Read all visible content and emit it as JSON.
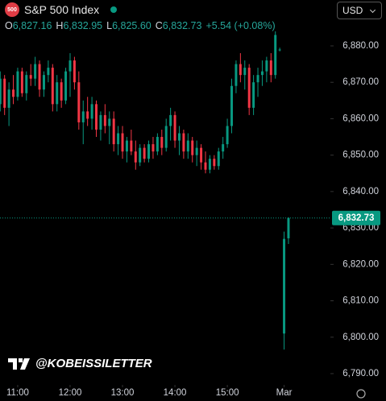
{
  "chart_data": {
    "type": "candlestick",
    "title": "S&P 500 Index",
    "badge": "500",
    "ohlc_legend": [
      {
        "key": "O",
        "value": "6,827.16"
      },
      {
        "key": "H",
        "value": "6,832.95"
      },
      {
        "key": "L",
        "value": "6,825.60"
      },
      {
        "key": "C",
        "value": "6,832.73"
      }
    ],
    "change": "+5.54 (+0.08%)",
    "currency": "USD",
    "watermark": "@KOBEISSILETTER",
    "up_color": "#089981",
    "down_color": "#f23645",
    "last_price": {
      "value": 6832.73,
      "label": "6,832.73"
    },
    "xlim": [
      -0.05,
      75.6
    ],
    "xticks": [
      {
        "value": 4,
        "label": "11:00"
      },
      {
        "value": 16,
        "label": "12:00"
      },
      {
        "value": 28,
        "label": "13:00"
      },
      {
        "value": 40,
        "label": "14:00"
      },
      {
        "value": 52,
        "label": "15:00"
      },
      {
        "value": 65,
        "label": "Mar"
      }
    ],
    "ylim": [
      6786.9,
      6892.6
    ],
    "yticks": [
      {
        "value": 6790,
        "label": "6,790.00"
      },
      {
        "value": 6800,
        "label": "6,800.00"
      },
      {
        "value": 6810,
        "label": "6,810.00"
      },
      {
        "value": 6820,
        "label": "6,820.00"
      },
      {
        "value": 6830,
        "label": "6,830.00"
      },
      {
        "value": 6840,
        "label": "6,840.00"
      },
      {
        "value": 6850,
        "label": "6,850.00"
      },
      {
        "value": 6860,
        "label": "6,860.00"
      },
      {
        "value": 6870,
        "label": "6,870.00"
      },
      {
        "value": 6880,
        "label": "6,880.00"
      }
    ],
    "candles": [
      [
        6864,
        6873,
        6862,
        6871
      ],
      [
        6871,
        6872,
        6861,
        6863
      ],
      [
        6863,
        6870,
        6858,
        6868
      ],
      [
        6868,
        6872,
        6864,
        6866
      ],
      [
        6866,
        6874,
        6865,
        6873
      ],
      [
        6873,
        6874,
        6866,
        6867
      ],
      [
        6867,
        6873,
        6865,
        6872
      ],
      [
        6872,
        6875,
        6869,
        6871
      ],
      [
        6871,
        6877,
        6869,
        6875
      ],
      [
        6875,
        6876,
        6866,
        6868
      ],
      [
        6868,
        6873,
        6866,
        6872
      ],
      [
        6872,
        6876,
        6870,
        6874
      ],
      [
        6874,
        6875,
        6862,
        6864
      ],
      [
        6864,
        6872,
        6862,
        6870
      ],
      [
        6870,
        6871,
        6863,
        6865
      ],
      [
        6865,
        6874,
        6864,
        6873
      ],
      [
        6873,
        6878,
        6866,
        6876
      ],
      [
        6876,
        6877,
        6868,
        6870
      ],
      [
        6870,
        6873,
        6857,
        6859
      ],
      [
        6859,
        6865,
        6853,
        6862
      ],
      [
        6862,
        6866,
        6858,
        6860
      ],
      [
        6860,
        6866,
        6857,
        6864
      ],
      [
        6864,
        6865,
        6855,
        6857
      ],
      [
        6857,
        6862,
        6854,
        6861
      ],
      [
        6861,
        6864,
        6856,
        6858
      ],
      [
        6858,
        6862,
        6853,
        6860
      ],
      [
        6860,
        6862,
        6851,
        6853
      ],
      [
        6853,
        6858,
        6850,
        6856
      ],
      [
        6856,
        6858,
        6849,
        6851
      ],
      [
        6851,
        6855,
        6848,
        6854
      ],
      [
        6854,
        6857,
        6850,
        6851
      ],
      [
        6851,
        6854,
        6846,
        6848
      ],
      [
        6848,
        6853,
        6847,
        6852
      ],
      [
        6852,
        6853,
        6848,
        6849
      ],
      [
        6849,
        6854,
        6848,
        6853
      ],
      [
        6853,
        6855,
        6849,
        6851
      ],
      [
        6851,
        6856,
        6850,
        6855
      ],
      [
        6855,
        6857,
        6850,
        6852
      ],
      [
        6852,
        6860,
        6851,
        6858
      ],
      [
        6858,
        6863,
        6854,
        6861
      ],
      [
        6861,
        6862,
        6852,
        6854
      ],
      [
        6854,
        6858,
        6850,
        6856
      ],
      [
        6856,
        6857,
        6849,
        6851
      ],
      [
        6851,
        6856,
        6849,
        6854
      ],
      [
        6854,
        6855,
        6848,
        6850
      ],
      [
        6850,
        6854,
        6847,
        6852
      ],
      [
        6852,
        6853,
        6846,
        6848
      ],
      [
        6848,
        6851,
        6845,
        6846
      ],
      [
        6846,
        6850,
        6845,
        6849
      ],
      [
        6849,
        6850,
        6846,
        6847
      ],
      [
        6847,
        6852,
        6846,
        6851
      ],
      [
        6851,
        6855,
        6849,
        6853
      ],
      [
        6853,
        6860,
        6852,
        6858
      ],
      [
        6858,
        6871,
        6856,
        6869
      ],
      [
        6869,
        6876,
        6867,
        6875
      ],
      [
        6875,
        6878,
        6870,
        6872
      ],
      [
        6872,
        6876,
        6868,
        6874
      ],
      [
        6874,
        6875,
        6861,
        6863
      ],
      [
        6863,
        6872,
        6861,
        6870
      ],
      [
        6870,
        6874,
        6866,
        6872
      ],
      [
        6872,
        6876,
        6869,
        6873
      ],
      [
        6873,
        6877,
        6870,
        6876
      ],
      [
        6876,
        6878,
        6870,
        6872
      ],
      [
        6872,
        6884,
        6871,
        6883
      ],
      [
        6879,
        6879.5,
        6878.5,
        6879
      ],
      [
        6801,
        6829,
        6796.6,
        6827
      ],
      [
        6827.16,
        6832.95,
        6825.6,
        6832.73
      ]
    ]
  }
}
